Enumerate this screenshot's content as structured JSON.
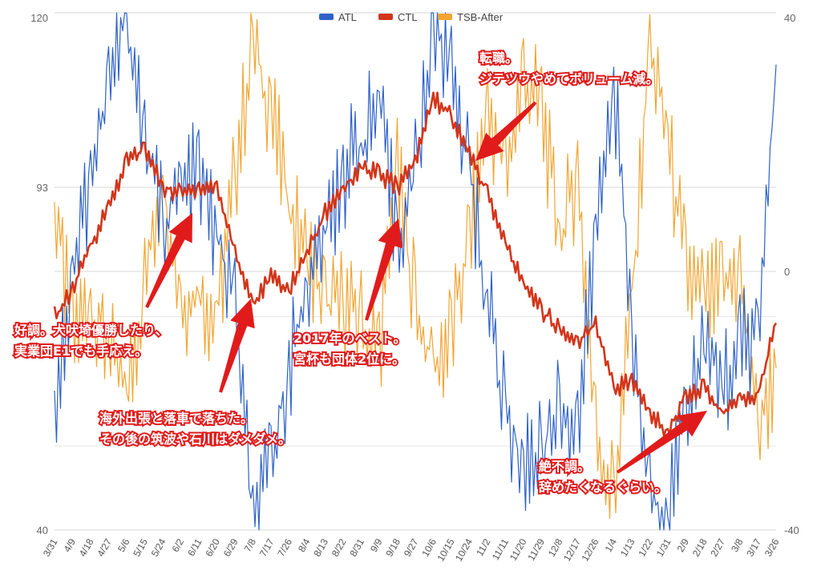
{
  "chart_data": {
    "type": "line",
    "title": "",
    "xlabel": "",
    "ylabel": "",
    "ylim": [
      40,
      120
    ],
    "y2lim": [
      -40,
      40
    ],
    "y_ticks": [
      "120",
      "93",
      "40"
    ],
    "y2_ticks": [
      "40",
      "0",
      "-40"
    ],
    "grid": true,
    "legend_position": "top-center",
    "colors": {
      "ATL": "#2e62c9",
      "CTL": "#d2361b",
      "TSB-After": "#f2a531",
      "annotation": "#e11b1b",
      "grid": "#d7d7d7"
    },
    "categories": [
      "3/31",
      "4/9",
      "4/18",
      "4/27",
      "5/6",
      "5/15",
      "5/24",
      "6/2",
      "6/11",
      "6/20",
      "6/29",
      "7/8",
      "7/17",
      "7/26",
      "8/4",
      "8/13",
      "8/22",
      "8/31",
      "9/9",
      "9/18",
      "9/27",
      "10/6",
      "10/15",
      "10/24",
      "11/2",
      "11/11",
      "11/20",
      "11/29",
      "12/8",
      "12/17",
      "12/26",
      "1/4",
      "1/13",
      "1/22",
      "1/31",
      "2/9",
      "2/18",
      "2/27",
      "3/8",
      "3/17",
      "3/26"
    ],
    "series": [
      {
        "name": "ATL",
        "axis": "left",
        "values": [
          58,
          80,
          95,
          108,
          120,
          100,
          88,
          92,
          95,
          85,
          75,
          40,
          50,
          65,
          78,
          85,
          95,
          100,
          105,
          85,
          95,
          118,
          112,
          95,
          75,
          58,
          50,
          52,
          60,
          55,
          85,
          110,
          70,
          45,
          42,
          60,
          68,
          62,
          68,
          70,
          112
        ]
      },
      {
        "name": "CTL",
        "axis": "left",
        "values": [
          73,
          77,
          84,
          90,
          97,
          99,
          93,
          92,
          93,
          93,
          83,
          75,
          79,
          77,
          83,
          89,
          93,
          96,
          95,
          93,
          97,
          107,
          104,
          98,
          92,
          84,
          78,
          74,
          71,
          69,
          72,
          62,
          63,
          58,
          55,
          61,
          62,
          58,
          60,
          61,
          72
        ]
      },
      {
        "name": "TSB-After",
        "axis": "right",
        "values": [
          10,
          -10,
          -5,
          -12,
          -20,
          -2,
          15,
          -5,
          -3,
          -8,
          15,
          35,
          25,
          10,
          2,
          -5,
          -5,
          -8,
          -12,
          15,
          -5,
          -15,
          -10,
          5,
          25,
          15,
          30,
          25,
          5,
          15,
          -25,
          -35,
          -5,
          35,
          20,
          0,
          -5,
          -3,
          0,
          -25,
          -15
        ]
      }
    ]
  },
  "annotations": [
    {
      "lines": [
        "好調。犬吠埼優勝したり、",
        "実業団E1でも手応え。"
      ]
    },
    {
      "lines": [
        "海外出張と落車で落ちた。",
        "その後の筑波や石川はダメダメ。"
      ]
    },
    {
      "lines": [
        "2017年のベスト。",
        "宮杯も団体2位に。"
      ]
    },
    {
      "lines": [
        "転職。",
        "ジテツウやめてボリューム減。"
      ]
    },
    {
      "lines": [
        "絶不調。",
        "辞めたくなるぐらい。"
      ]
    }
  ]
}
